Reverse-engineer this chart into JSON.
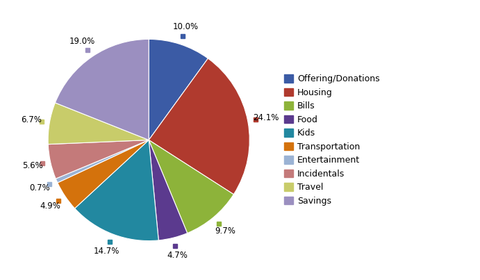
{
  "labels": [
    "Offering/Donations",
    "Housing",
    "Bills",
    "Food",
    "Kids",
    "Transportation",
    "Entertainment",
    "Incidentals",
    "Travel",
    "Savings"
  ],
  "values": [
    10.0,
    24.1,
    9.7,
    4.7,
    14.7,
    4.9,
    0.7,
    5.6,
    6.7,
    19.0
  ],
  "colors": [
    "#3B5BA5",
    "#B03A2E",
    "#8DB33A",
    "#5B3A8E",
    "#2288A0",
    "#D4720C",
    "#9BB3D4",
    "#C47A7A",
    "#C8CC6A",
    "#9B8FC0"
  ],
  "pct_labels": [
    "10.0%",
    "24.1%",
    "9.7%",
    "4.7%",
    "14.7%",
    "4.9%",
    "0.7%",
    "5.6%",
    "6.7%",
    "19.0%"
  ],
  "startangle": 90,
  "figsize": [
    6.91,
    4.03
  ],
  "dpi": 100,
  "bg_color": "#FFFFFF"
}
